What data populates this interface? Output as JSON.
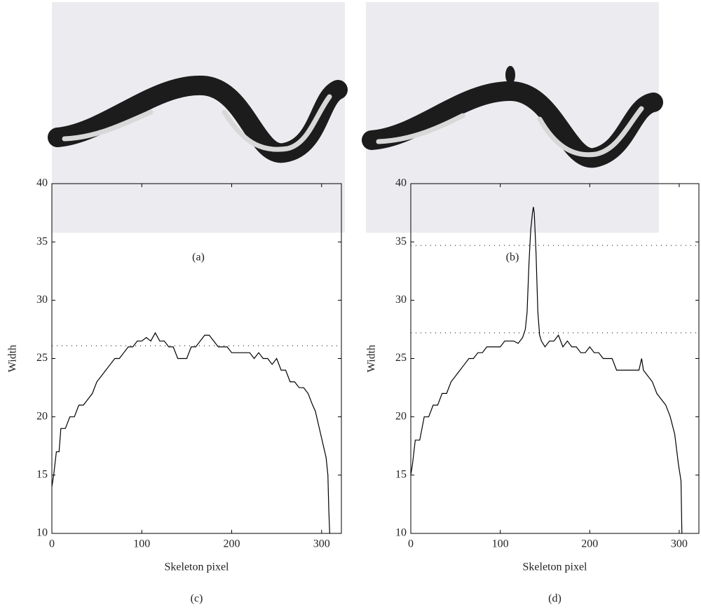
{
  "image_captions": [
    "(a)",
    "(b)"
  ],
  "chart_data": [
    {
      "type": "line",
      "caption": "(c)",
      "xlabel": "Skeleton pixel",
      "ylabel": "Width",
      "color": "#000000",
      "xlim": [
        0,
        322
      ],
      "ylim": [
        10,
        40
      ],
      "xticks": [
        0,
        100,
        200,
        300
      ],
      "yticks": [
        10,
        15,
        20,
        25,
        30,
        35,
        40
      ],
      "reference_lines": [
        26.1
      ],
      "x": [
        0,
        2,
        5,
        8,
        10,
        15,
        20,
        25,
        30,
        35,
        40,
        45,
        50,
        55,
        60,
        65,
        70,
        75,
        80,
        85,
        90,
        95,
        100,
        105,
        110,
        115,
        120,
        125,
        130,
        135,
        140,
        145,
        150,
        155,
        160,
        165,
        170,
        175,
        180,
        185,
        190,
        195,
        200,
        205,
        210,
        215,
        220,
        225,
        230,
        235,
        240,
        245,
        250,
        255,
        260,
        265,
        270,
        275,
        280,
        285,
        290,
        293,
        296,
        299,
        302,
        305,
        307,
        308,
        309
      ],
      "values": [
        14,
        15,
        17,
        17,
        19,
        19,
        20,
        20,
        21,
        21,
        21.5,
        22,
        23,
        23.5,
        24,
        24.5,
        25,
        25,
        25.5,
        26,
        26,
        26.5,
        26.5,
        26.8,
        26.5,
        27.2,
        26.5,
        26.5,
        26,
        26,
        25,
        25,
        25,
        26,
        26,
        26.5,
        27,
        27,
        26.5,
        26,
        26,
        26,
        25.5,
        25.5,
        25.5,
        25.5,
        25.5,
        25,
        25.5,
        25,
        25,
        24.5,
        25,
        24,
        24,
        23,
        23,
        22.5,
        22.5,
        22,
        21,
        20.5,
        19.5,
        18.5,
        17.5,
        16.5,
        15,
        12,
        10
      ]
    },
    {
      "type": "line",
      "caption": "(d)",
      "xlabel": "Skeleton pixel",
      "ylabel": "Width",
      "color": "#000000",
      "xlim": [
        0,
        322
      ],
      "ylim": [
        10,
        40
      ],
      "xticks": [
        0,
        100,
        200,
        300
      ],
      "yticks": [
        10,
        15,
        20,
        25,
        30,
        35,
        40
      ],
      "reference_lines": [
        34.7,
        27.2
      ],
      "x": [
        0,
        2,
        5,
        10,
        15,
        20,
        25,
        30,
        35,
        40,
        45,
        50,
        55,
        60,
        65,
        70,
        75,
        80,
        85,
        90,
        95,
        100,
        105,
        110,
        115,
        120,
        125,
        128,
        130,
        132,
        134,
        136,
        137,
        138,
        140,
        142,
        144,
        146,
        150,
        155,
        160,
        165,
        170,
        175,
        180,
        185,
        190,
        195,
        200,
        205,
        210,
        215,
        220,
        225,
        230,
        235,
        240,
        245,
        250,
        255,
        258,
        260,
        265,
        270,
        275,
        280,
        285,
        290,
        295,
        299,
        301,
        302,
        303
      ],
      "values": [
        15,
        16,
        18,
        18,
        20,
        20,
        21,
        21,
        22,
        22,
        23,
        23.5,
        24,
        24.5,
        25,
        25,
        25.5,
        25.5,
        26,
        26,
        26,
        26,
        26.5,
        26.5,
        26.5,
        26.3,
        26.8,
        27.5,
        29,
        33,
        36,
        37.5,
        38,
        37.5,
        34,
        29,
        27,
        26.5,
        26,
        26.5,
        26.5,
        27,
        26,
        26.5,
        26,
        26,
        25.5,
        25.5,
        26,
        25.5,
        25.5,
        25,
        25,
        25,
        24,
        24,
        24,
        24,
        24,
        24,
        25,
        24,
        23.5,
        23,
        22,
        21.5,
        21,
        20,
        18.5,
        16,
        15,
        14.5,
        10
      ]
    }
  ]
}
